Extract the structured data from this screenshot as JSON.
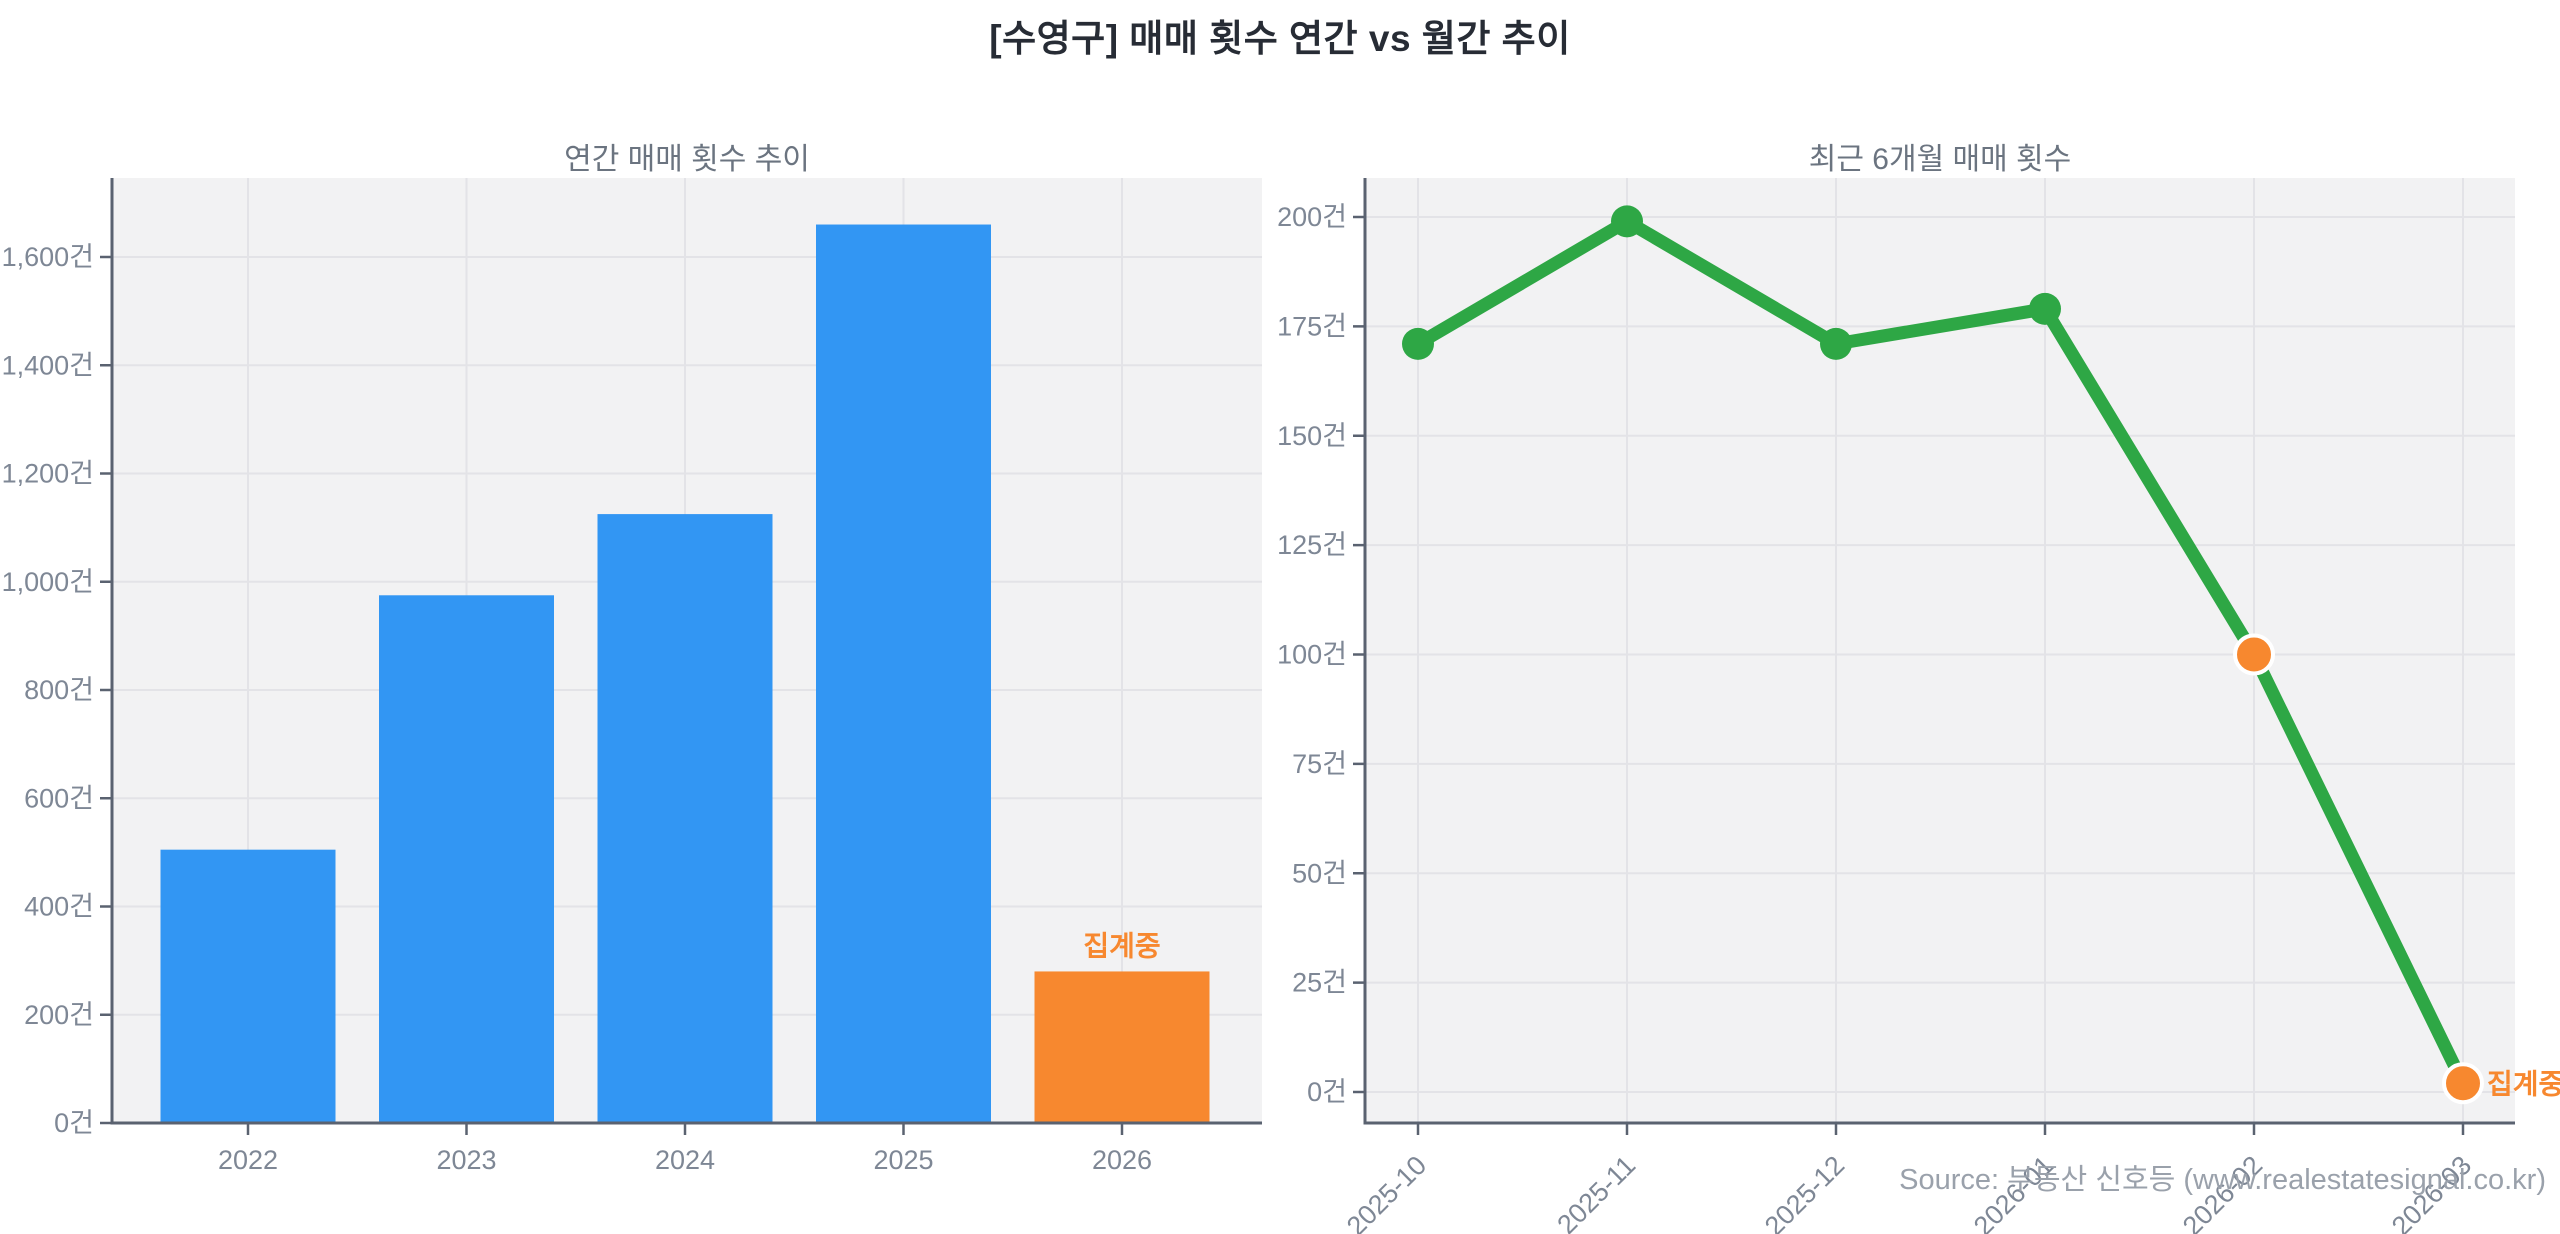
{
  "page": {
    "title": "[수영구] 매매 횟수 연간 vs 월간 추이",
    "source": "Source: 부동산 신호등 (www.realestatesignal.co.kr)"
  },
  "colors": {
    "bar_blue": "#3296f3",
    "accent_orange": "#f7882f",
    "line_green": "#2ea745",
    "plot_bg": "#f2f2f3",
    "grid": "#e3e3e7",
    "axis": "#5a6270",
    "tick_label": "#7e8795",
    "subtitle": "#6b7480",
    "title": "#272c35",
    "source_text": "#9aa1ab",
    "point_border": "#ffffff"
  },
  "chart_data": [
    {
      "type": "bar",
      "title": "연간 매매 횟수 추이",
      "categories": [
        "2022",
        "2023",
        "2024",
        "2025",
        "2026"
      ],
      "values": [
        505,
        975,
        1125,
        1660,
        280
      ],
      "bar_colors": [
        "blue",
        "blue",
        "blue",
        "blue",
        "orange"
      ],
      "yticks": [
        0,
        200,
        400,
        600,
        800,
        1000,
        1200,
        1400,
        1600
      ],
      "ytick_suffix": "건",
      "ylim": [
        0,
        1748
      ],
      "grid": true,
      "legend": "none",
      "annotations": [
        {
          "text": "집계중",
          "target": "2026",
          "placement": "above-bar",
          "color": "orange"
        }
      ]
    },
    {
      "type": "line",
      "title": "최근 6개월 매매 횟수",
      "x": [
        "2025-10",
        "2025-11",
        "2025-12",
        "2026-01",
        "2026-02",
        "2026-03"
      ],
      "values": [
        171,
        199,
        171,
        179,
        100,
        2
      ],
      "point_colors": [
        "green",
        "green",
        "green",
        "green",
        "orange",
        "orange"
      ],
      "line_color": "green",
      "yticks": [
        0,
        25,
        50,
        75,
        100,
        125,
        150,
        175,
        200
      ],
      "ytick_suffix": "건",
      "ylim": [
        -7,
        209
      ],
      "grid": true,
      "legend": "none",
      "x_tick_rotation": 45,
      "annotations": [
        {
          "text": "집계중",
          "target": "2026-03",
          "placement": "right-of-point",
          "color": "orange"
        }
      ]
    }
  ]
}
